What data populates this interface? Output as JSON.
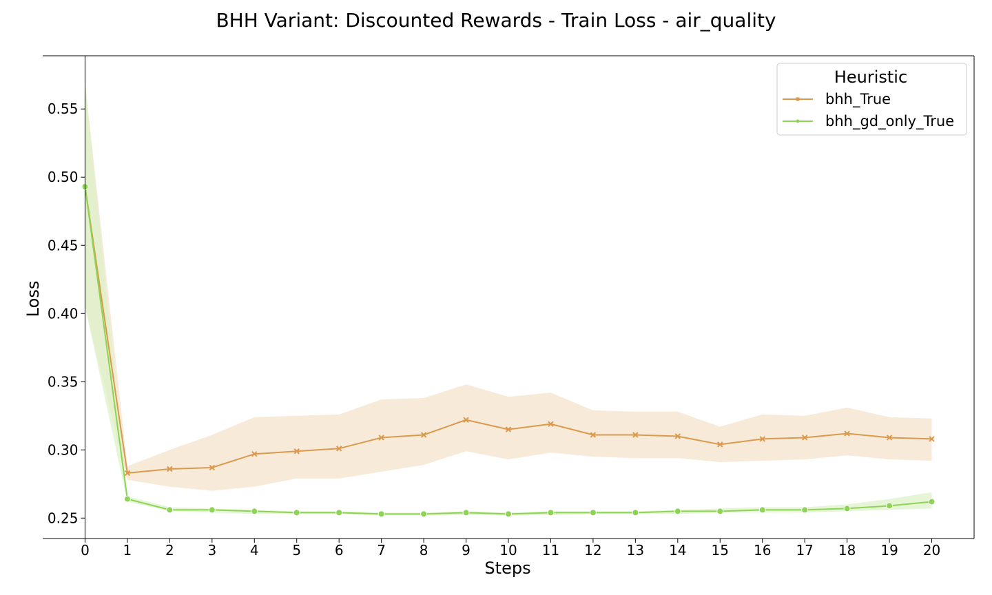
{
  "chart_data": {
    "type": "line",
    "title": "BHH Variant: Discounted Rewards - Train Loss - air_quality",
    "xlabel": "Steps",
    "ylabel": "Loss",
    "x": [
      0,
      1,
      2,
      3,
      4,
      5,
      6,
      7,
      8,
      9,
      10,
      11,
      12,
      13,
      14,
      15,
      16,
      17,
      18,
      19,
      20
    ],
    "xlim": [
      -1,
      21
    ],
    "ylim": [
      0.235,
      0.589
    ],
    "yticks": [
      0.25,
      0.3,
      0.35,
      0.4,
      0.45,
      0.5,
      0.55
    ],
    "ytick_labels": [
      "0.25",
      "0.30",
      "0.35",
      "0.40",
      "0.45",
      "0.50",
      "0.55"
    ],
    "xtick_labels": [
      "0",
      "1",
      "2",
      "3",
      "4",
      "5",
      "6",
      "7",
      "8",
      "9",
      "10",
      "11",
      "12",
      "13",
      "14",
      "15",
      "16",
      "17",
      "18",
      "19",
      "20"
    ],
    "legend": {
      "title": "Heuristic",
      "position": "top-right"
    },
    "series": [
      {
        "name": "bhh_True",
        "color": "#d99a4e",
        "band_color": "#f5e3cc",
        "marker": "x",
        "values": [
          0.493,
          0.283,
          0.286,
          0.287,
          0.297,
          0.299,
          0.301,
          0.309,
          0.311,
          0.322,
          0.315,
          0.319,
          0.311,
          0.311,
          0.31,
          0.304,
          0.308,
          0.309,
          0.312,
          0.309,
          0.308
        ],
        "lower": [
          0.405,
          0.278,
          0.273,
          0.27,
          0.273,
          0.279,
          0.279,
          0.284,
          0.289,
          0.299,
          0.293,
          0.298,
          0.295,
          0.294,
          0.294,
          0.291,
          0.292,
          0.293,
          0.296,
          0.293,
          0.292
        ],
        "upper": [
          0.569,
          0.288,
          0.3,
          0.311,
          0.324,
          0.325,
          0.326,
          0.337,
          0.338,
          0.348,
          0.339,
          0.342,
          0.329,
          0.328,
          0.328,
          0.317,
          0.326,
          0.325,
          0.331,
          0.324,
          0.323
        ]
      },
      {
        "name": "bhh_gd_only_True",
        "color": "#8ed454",
        "band_color": "#ddf2c8",
        "marker": "o",
        "values": [
          0.493,
          0.264,
          0.256,
          0.256,
          0.255,
          0.254,
          0.254,
          0.253,
          0.253,
          0.254,
          0.253,
          0.254,
          0.254,
          0.254,
          0.255,
          0.255,
          0.256,
          0.256,
          0.257,
          0.259,
          0.262
        ],
        "lower": [
          0.405,
          0.262,
          0.255,
          0.254,
          0.253,
          0.253,
          0.253,
          0.252,
          0.252,
          0.252,
          0.252,
          0.252,
          0.253,
          0.253,
          0.253,
          0.254,
          0.254,
          0.254,
          0.255,
          0.256,
          0.257
        ],
        "upper": [
          0.569,
          0.266,
          0.258,
          0.257,
          0.256,
          0.255,
          0.255,
          0.254,
          0.254,
          0.255,
          0.254,
          0.255,
          0.255,
          0.255,
          0.256,
          0.257,
          0.258,
          0.258,
          0.26,
          0.264,
          0.269
        ]
      }
    ]
  }
}
